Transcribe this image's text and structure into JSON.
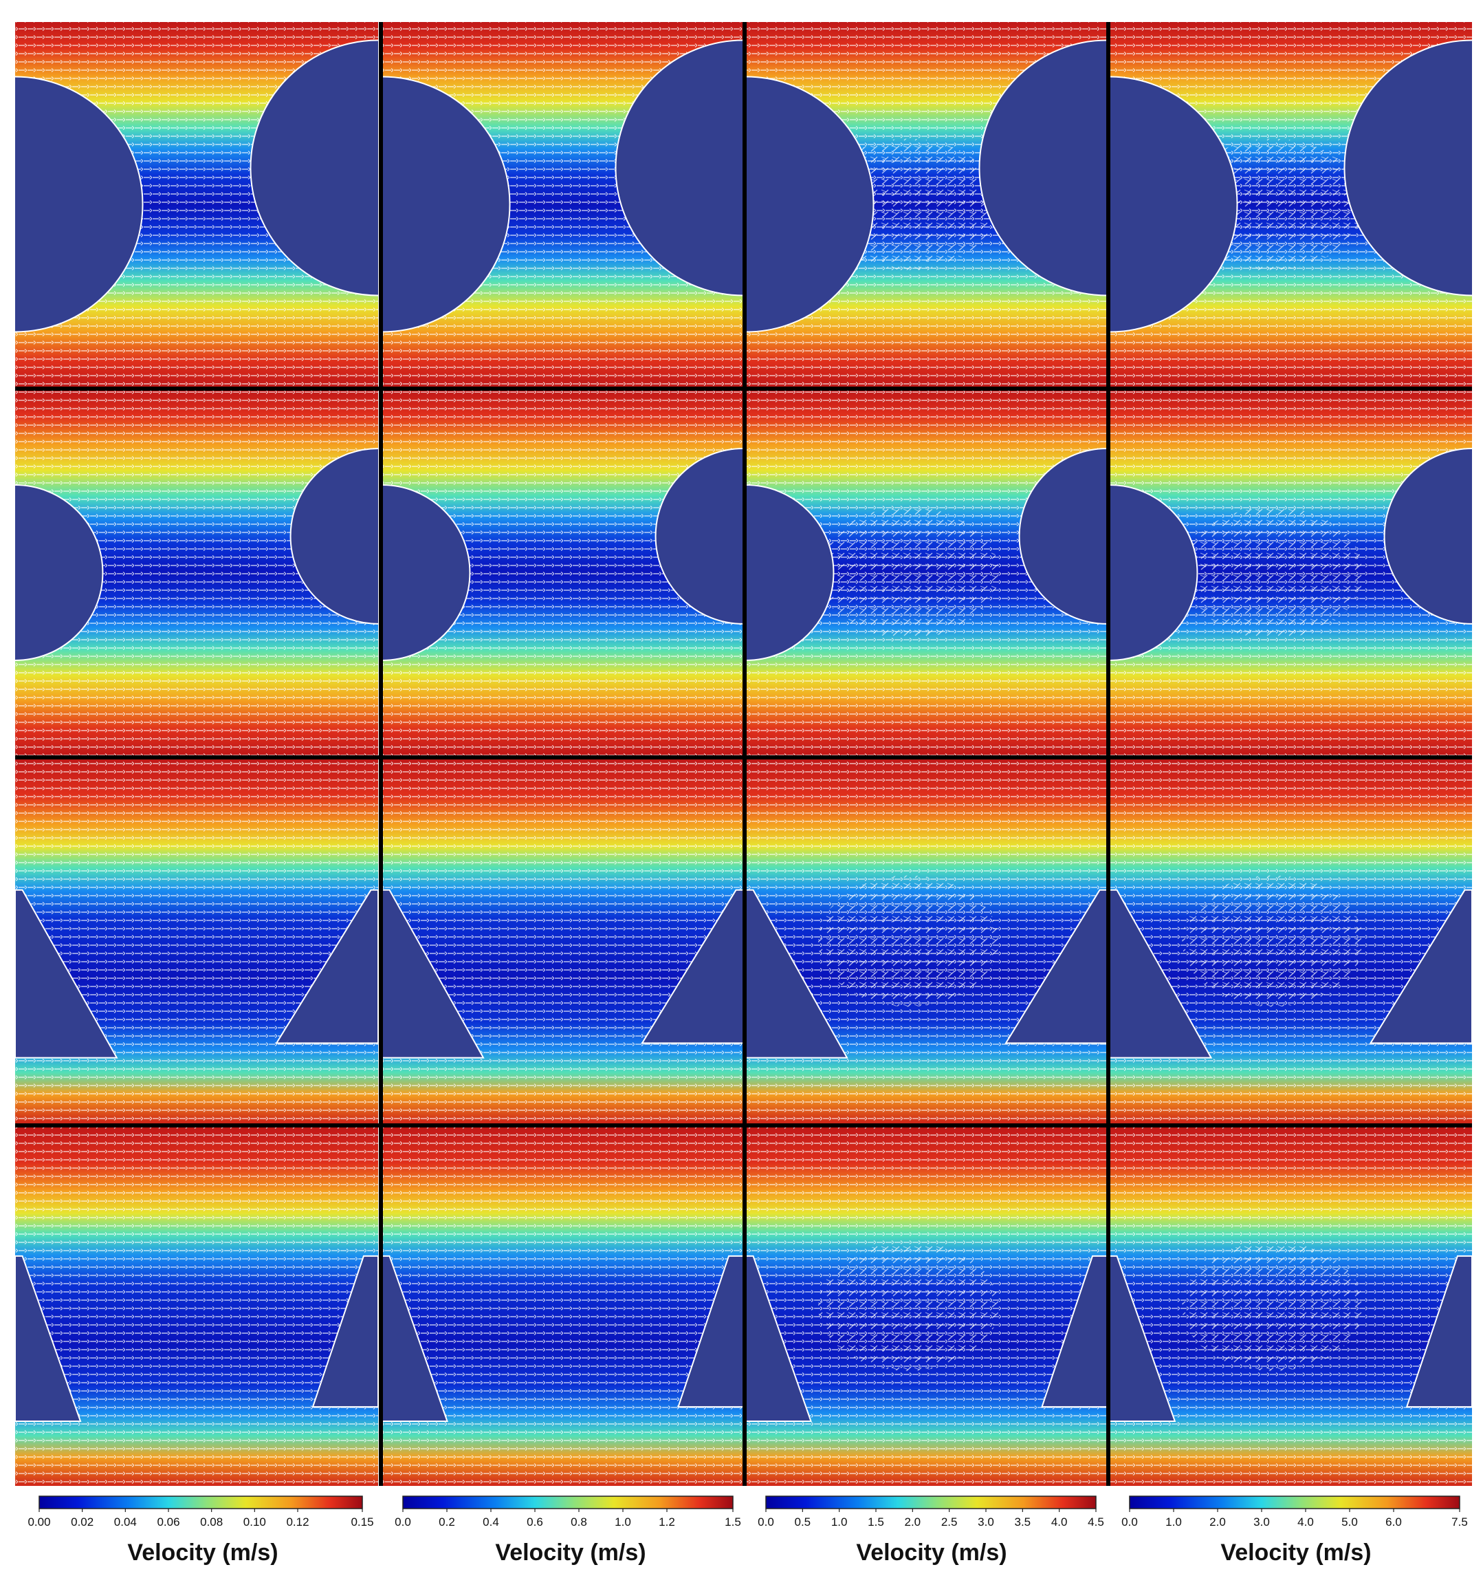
{
  "figure": {
    "rows": [
      {
        "geometry": "circle",
        "obstacle_size": "large"
      },
      {
        "geometry": "circle",
        "obstacle_size": "small"
      },
      {
        "geometry": "trapezoid",
        "obstacle_size": "wide"
      },
      {
        "geometry": "trapezoid",
        "obstacle_size": "narrow"
      }
    ],
    "columns": [
      {
        "velocity_max": 0.15,
        "recirculation": false
      },
      {
        "velocity_max": 1.5,
        "recirculation": false
      },
      {
        "velocity_max": 4.5,
        "recirculation": true
      },
      {
        "velocity_max": 7.5,
        "recirculation": true
      }
    ],
    "colormap": "jet",
    "obstacle_color": "#333f8f",
    "vector_color": "#ffffff",
    "separator_color": "#000000"
  },
  "colorbars": [
    {
      "label": "Velocity (m/s)",
      "ticks": [
        "0.00",
        "0.02",
        "0.04",
        "0.06",
        "0.08",
        "0.10",
        "0.12",
        "0.15"
      ],
      "tick_values": [
        0,
        0.02,
        0.04,
        0.06,
        0.08,
        0.1,
        0.12,
        0.15
      ],
      "max": 0.15
    },
    {
      "label": "Velocity (m/s)",
      "ticks": [
        "0.0",
        "0.2",
        "0.4",
        "0.6",
        "0.8",
        "1.0",
        "1.2",
        "1.5"
      ],
      "tick_values": [
        0,
        0.2,
        0.4,
        0.6,
        0.8,
        1.0,
        1.2,
        1.5
      ],
      "max": 1.5
    },
    {
      "label": "Velocity (m/s)",
      "ticks": [
        "0.0",
        "0.5",
        "1.0",
        "1.5",
        "2.0",
        "2.5",
        "3.0",
        "3.5",
        "4.0",
        "4.5"
      ],
      "tick_values": [
        0,
        0.5,
        1.0,
        1.5,
        2.0,
        2.5,
        3.0,
        3.5,
        4.0,
        4.5
      ],
      "max": 4.5
    },
    {
      "label": "Velocity (m/s)",
      "ticks": [
        "0.0",
        "1.0",
        "2.0",
        "3.0",
        "4.0",
        "5.0",
        "6.0",
        "7.5"
      ],
      "tick_values": [
        0,
        1,
        2,
        3,
        4,
        5,
        6,
        7.5
      ],
      "max": 7.5
    }
  ]
}
